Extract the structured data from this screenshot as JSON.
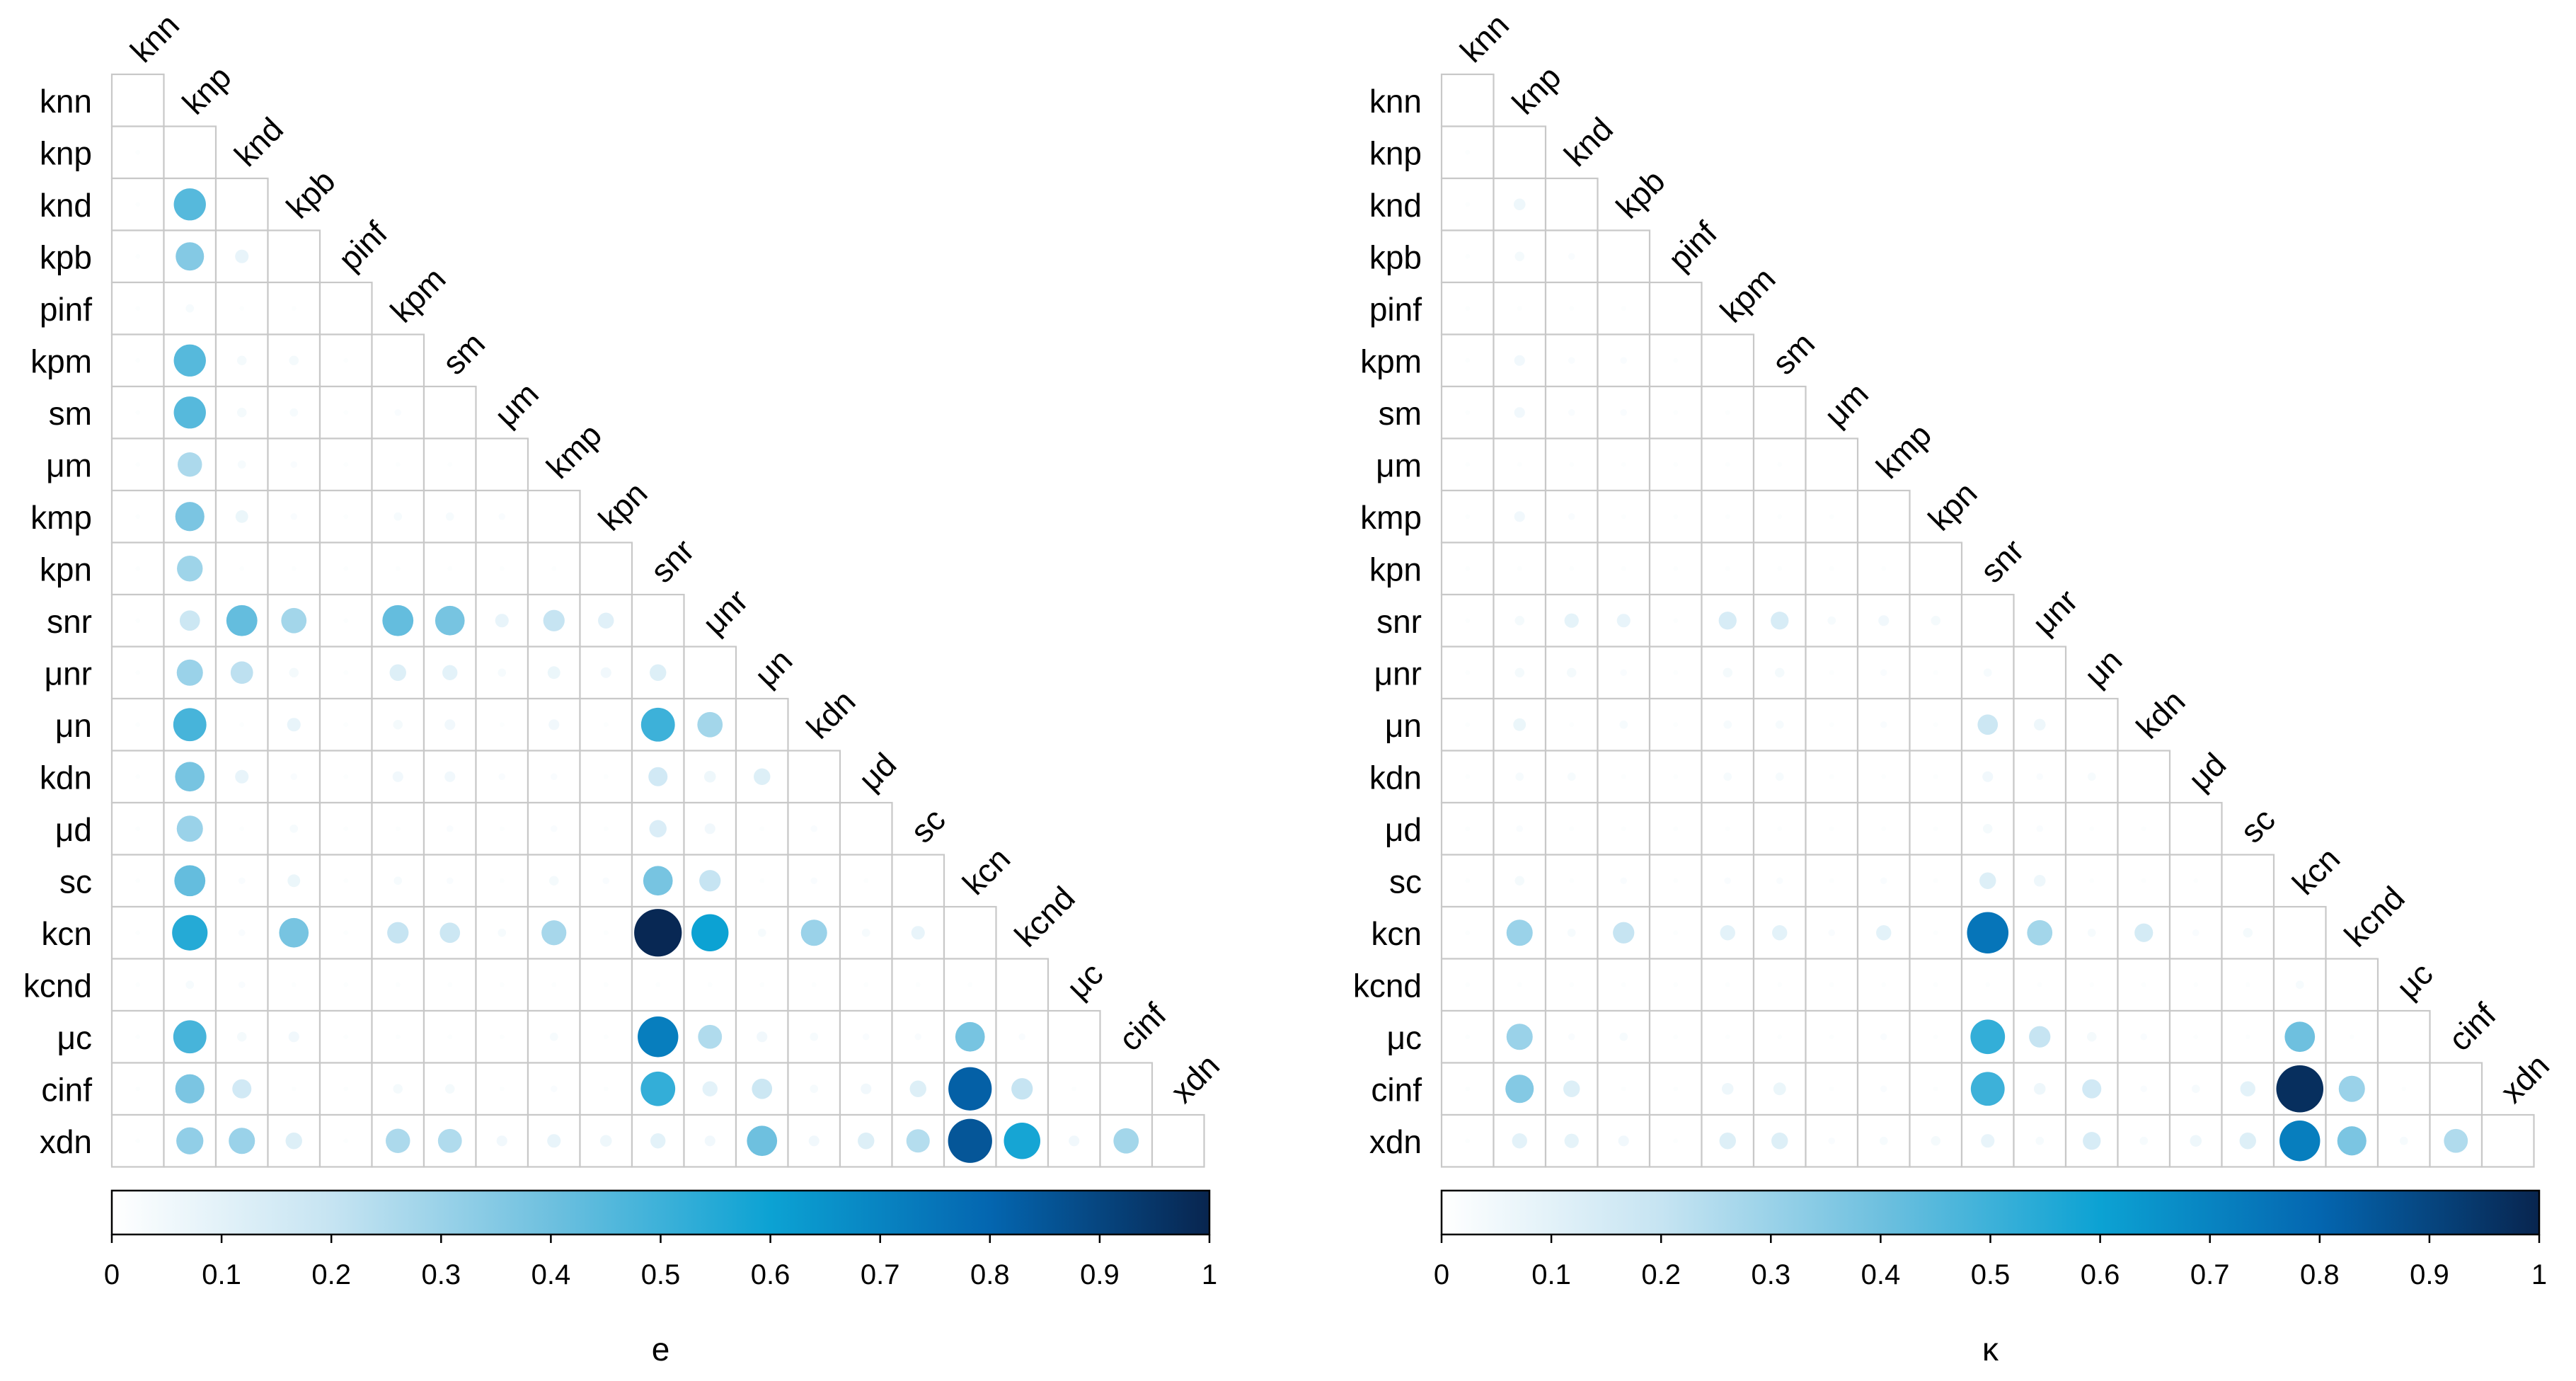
{
  "chart_data": [
    {
      "type": "heatmap",
      "subtype": "lower-triangular correlation dot plot",
      "title": "",
      "xlabel": "e",
      "ylabel": "",
      "variables": [
        "knn",
        "knp",
        "knd",
        "kpb",
        "pinf",
        "kpm",
        "sm",
        "μm",
        "kmp",
        "kpn",
        "snr",
        "μnr",
        "μn",
        "kdn",
        "μd",
        "sc",
        "kcn",
        "kcnd",
        "μc",
        "cinf",
        "xdn"
      ],
      "color_scale": {
        "min": 0,
        "max": 1,
        "ticks": [
          "0",
          "0.1",
          "0.2",
          "0.3",
          "0.4",
          "0.5",
          "0.6",
          "0.7",
          "0.8",
          "0.9",
          "1"
        ],
        "colors": [
          "#ffffff",
          "#c6e4f2",
          "#6ec0df",
          "#0ca2d3",
          "#0466b0",
          "#08254f"
        ]
      },
      "values": [
        [],
        [
          0.01
        ],
        [
          0.01,
          0.45
        ],
        [
          0.01,
          0.35,
          0.08
        ],
        [
          0.01,
          0.03,
          0.01,
          0.01
        ],
        [
          0.01,
          0.45,
          0.04,
          0.04,
          0.01
        ],
        [
          0.01,
          0.45,
          0.04,
          0.03,
          0.01,
          0.02
        ],
        [
          0.01,
          0.26,
          0.03,
          0.02,
          0.01,
          0.01,
          0.01
        ],
        [
          0.01,
          0.37,
          0.07,
          0.02,
          0.01,
          0.03,
          0.03,
          0.02
        ],
        [
          0.01,
          0.29,
          0.01,
          0.01,
          0.01,
          0.01,
          0.01,
          0.01,
          0.01
        ],
        [
          0.01,
          0.18,
          0.42,
          0.28,
          0.01,
          0.42,
          0.38,
          0.08,
          0.2,
          0.11
        ],
        [
          0.01,
          0.3,
          0.22,
          0.04,
          0.01,
          0.12,
          0.1,
          0.03,
          0.07,
          0.05,
          0.12
        ],
        [
          0.01,
          0.48,
          0.01,
          0.08,
          0.01,
          0.04,
          0.05,
          0.01,
          0.05,
          0.01,
          0.5,
          0.28
        ],
        [
          0.01,
          0.38,
          0.08,
          0.02,
          0.01,
          0.05,
          0.05,
          0.02,
          0.02,
          0.01,
          0.16,
          0.06,
          0.12
        ],
        [
          0.01,
          0.3,
          0.01,
          0.03,
          0.01,
          0.01,
          0.02,
          0.01,
          0.02,
          0.01,
          0.13,
          0.05,
          0.01,
          0.02
        ],
        [
          0.01,
          0.42,
          0.02,
          0.07,
          0.01,
          0.03,
          0.02,
          0.01,
          0.04,
          0.02,
          0.38,
          0.2,
          0.01,
          0.02,
          0.01
        ],
        [
          0.01,
          0.55,
          0.02,
          0.38,
          0.01,
          0.2,
          0.18,
          0.03,
          0.27,
          0.01,
          0.99,
          0.6,
          0.03,
          0.3,
          0.03,
          0.08
        ],
        [
          0.01,
          0.03,
          0.02,
          0.01,
          0.01,
          0.01,
          0.01,
          0.01,
          0.01,
          0.01,
          0.01,
          0.01,
          0.01,
          0.01,
          0.01,
          0.01,
          0.01
        ],
        [
          0.01,
          0.48,
          0.04,
          0.05,
          0.01,
          0.01,
          0.01,
          0.01,
          0.03,
          0.01,
          0.72,
          0.25,
          0.05,
          0.03,
          0.02,
          0.02,
          0.38,
          0.02
        ],
        [
          0.01,
          0.37,
          0.16,
          0.01,
          0.01,
          0.04,
          0.04,
          0.01,
          0.02,
          0.01,
          0.52,
          0.1,
          0.18,
          0.03,
          0.05,
          0.12,
          0.82,
          0.2,
          0.01
        ],
        [
          0.01,
          0.32,
          0.3,
          0.12,
          0.01,
          0.26,
          0.25,
          0.05,
          0.08,
          0.06,
          0.1,
          0.05,
          0.4,
          0.05,
          0.12,
          0.24,
          0.85,
          0.58,
          0.05,
          0.28
        ]
      ]
    },
    {
      "type": "heatmap",
      "subtype": "lower-triangular correlation dot plot",
      "title": "",
      "xlabel": "κ",
      "ylabel": "",
      "variables": [
        "knn",
        "knp",
        "knd",
        "kpb",
        "pinf",
        "kpm",
        "sm",
        "μm",
        "kmp",
        "kpn",
        "snr",
        "μnr",
        "μn",
        "kdn",
        "μd",
        "sc",
        "kcn",
        "kcnd",
        "μc",
        "cinf",
        "xdn"
      ],
      "color_scale": {
        "min": 0,
        "max": 1,
        "ticks": [
          "0",
          "0.1",
          "0.2",
          "0.3",
          "0.4",
          "0.5",
          "0.6",
          "0.7",
          "0.8",
          "0.9",
          "1"
        ],
        "colors": [
          "#ffffff",
          "#c6e4f2",
          "#6ec0df",
          "#0ca2d3",
          "#0466b0",
          "#08254f"
        ]
      },
      "values": [
        [],
        [
          0.01
        ],
        [
          0.01,
          0.06
        ],
        [
          0.01,
          0.04,
          0.02
        ],
        [
          0.01,
          0.01,
          0.01,
          0.01
        ],
        [
          0.01,
          0.05,
          0.02,
          0.02,
          0.01
        ],
        [
          0.01,
          0.05,
          0.02,
          0.02,
          0.01,
          0.01
        ],
        [
          0.01,
          0.01,
          0.01,
          0.01,
          0.01,
          0.01,
          0.01
        ],
        [
          0.01,
          0.05,
          0.02,
          0.01,
          0.01,
          0.01,
          0.01,
          0.01
        ],
        [
          0.01,
          0.01,
          0.01,
          0.01,
          0.01,
          0.01,
          0.01,
          0.01,
          0.01
        ],
        [
          0.01,
          0.04,
          0.09,
          0.08,
          0.01,
          0.14,
          0.14,
          0.03,
          0.05,
          0.04
        ],
        [
          0.01,
          0.04,
          0.04,
          0.02,
          0.01,
          0.04,
          0.04,
          0.01,
          0.02,
          0.01,
          0.03
        ],
        [
          0.01,
          0.07,
          0.01,
          0.03,
          0.01,
          0.03,
          0.03,
          0.01,
          0.02,
          0.01,
          0.18,
          0.06
        ],
        [
          0.01,
          0.03,
          0.03,
          0.01,
          0.01,
          0.03,
          0.03,
          0.01,
          0.01,
          0.01,
          0.05,
          0.02,
          0.03
        ],
        [
          0.01,
          0.02,
          0.01,
          0.01,
          0.01,
          0.01,
          0.01,
          0.01,
          0.01,
          0.01,
          0.04,
          0.02,
          0.01,
          0.01
        ],
        [
          0.01,
          0.04,
          0.01,
          0.02,
          0.01,
          0.02,
          0.02,
          0.01,
          0.02,
          0.01,
          0.12,
          0.06,
          0.01,
          0.01,
          0.01
        ],
        [
          0.01,
          0.3,
          0.03,
          0.2,
          0.01,
          0.1,
          0.1,
          0.02,
          0.1,
          0.01,
          0.75,
          0.28,
          0.03,
          0.15,
          0.02,
          0.04
        ],
        [
          0.01,
          0.01,
          0.01,
          0.01,
          0.01,
          0.01,
          0.01,
          0.01,
          0.01,
          0.01,
          0.01,
          0.01,
          0.01,
          0.01,
          0.01,
          0.01,
          0.03
        ],
        [
          0.01,
          0.3,
          0.02,
          0.03,
          0.01,
          0.01,
          0.01,
          0.01,
          0.02,
          0.01,
          0.52,
          0.2,
          0.04,
          0.02,
          0.01,
          0.01,
          0.4,
          0.01
        ],
        [
          0.01,
          0.35,
          0.12,
          0.01,
          0.01,
          0.06,
          0.07,
          0.01,
          0.02,
          0.01,
          0.5,
          0.06,
          0.16,
          0.02,
          0.03,
          0.1,
          0.97,
          0.3,
          0.01
        ],
        [
          0.01,
          0.1,
          0.09,
          0.05,
          0.01,
          0.12,
          0.12,
          0.02,
          0.03,
          0.04,
          0.08,
          0.03,
          0.14,
          0.03,
          0.06,
          0.12,
          0.72,
          0.37,
          0.03,
          0.25
        ]
      ]
    }
  ]
}
